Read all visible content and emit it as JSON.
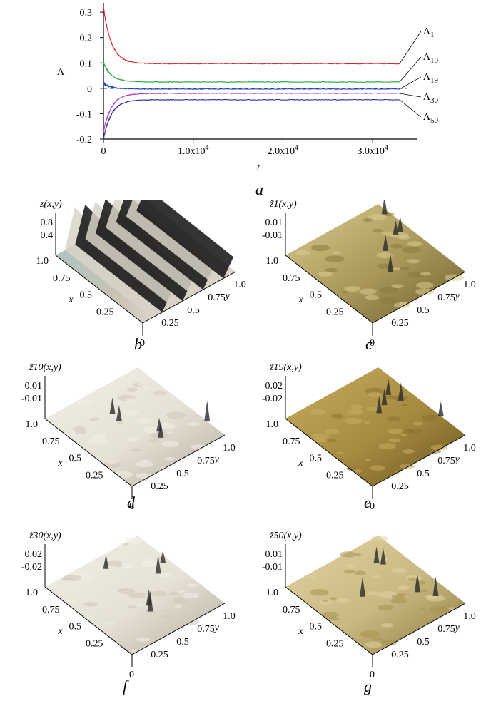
{
  "chart_data": {
    "type": "line",
    "ylabel": "Λ",
    "xlabel": "t",
    "ylim": [
      -0.2,
      0.32
    ],
    "xlim": [
      0,
      35000
    ],
    "yticks": [
      {
        "v": 0.3,
        "label": "0.3"
      },
      {
        "v": 0.2,
        "label": "0.2"
      },
      {
        "v": 0.1,
        "label": "0.1"
      },
      {
        "v": 0,
        "label": "0"
      },
      {
        "v": -0.1,
        "label": "-0.1"
      },
      {
        "v": -0.2,
        "label": "-0.2"
      }
    ],
    "xticks": [
      {
        "v": 0,
        "label": "0",
        "sup": ""
      },
      {
        "v": 10000,
        "label": "1.0x10",
        "sup": "4"
      },
      {
        "v": 20000,
        "label": "2.0x10",
        "sup": "4"
      },
      {
        "v": 30000,
        "label": "3.0x10",
        "sup": "4"
      }
    ],
    "series": [
      {
        "base": "Λ",
        "sub": "1",
        "final": 0.097,
        "start": 0.32,
        "color": "#e0202a"
      },
      {
        "base": "Λ",
        "sub": "10",
        "final": 0.025,
        "start": 0.1,
        "color": "#27a535"
      },
      {
        "base": "Λ",
        "sub": "19",
        "final": -0.003,
        "start": 0.02,
        "color": "#2a4fb8"
      },
      {
        "base": "Λ",
        "sub": "30",
        "final": -0.02,
        "start": -0.17,
        "color": "#b43cc2"
      },
      {
        "base": "Λ",
        "sub": "50",
        "final": -0.045,
        "start": -0.2,
        "color": "#2a2f9a"
      }
    ],
    "t_end": 33000,
    "zero_line": "dashed"
  },
  "caption_a": "a",
  "panels": [
    {
      "id": "b",
      "zlabel": "z(x,y)",
      "zticks": [
        "0.8",
        "0.4"
      ],
      "color": "gray",
      "caption": "b"
    },
    {
      "id": "c",
      "zlabel": "z̃1(x,y)",
      "zticks": [
        "0.01",
        "-0.01"
      ],
      "color": "olive",
      "caption": "c"
    },
    {
      "id": "d",
      "zlabel": "z̃10(x,y)",
      "zticks": [
        "0.01",
        "-0.01"
      ],
      "color": "cream",
      "caption": "d"
    },
    {
      "id": "e",
      "zlabel": "z̃19(x,y)",
      "zticks": [
        "0.02",
        "-0.02"
      ],
      "color": "olive-dark",
      "caption": "e"
    },
    {
      "id": "f",
      "zlabel": "z̃30(x,y)",
      "zticks": [
        "0.02",
        "-0.02"
      ],
      "color": "cream",
      "caption": "f"
    },
    {
      "id": "g",
      "zlabel": "z̃50(x,y)",
      "zticks": [
        "0.01",
        "-0.01"
      ],
      "color": "tan",
      "caption": "g"
    }
  ],
  "axes3d": {
    "x_label": "x",
    "y_label": "y",
    "x_ticks": [
      "1.0",
      "0.75",
      "0.5",
      "0.25"
    ],
    "y_ticks": [
      "0.25",
      "0.5",
      "0.75",
      "1.0"
    ],
    "origin": "0"
  }
}
